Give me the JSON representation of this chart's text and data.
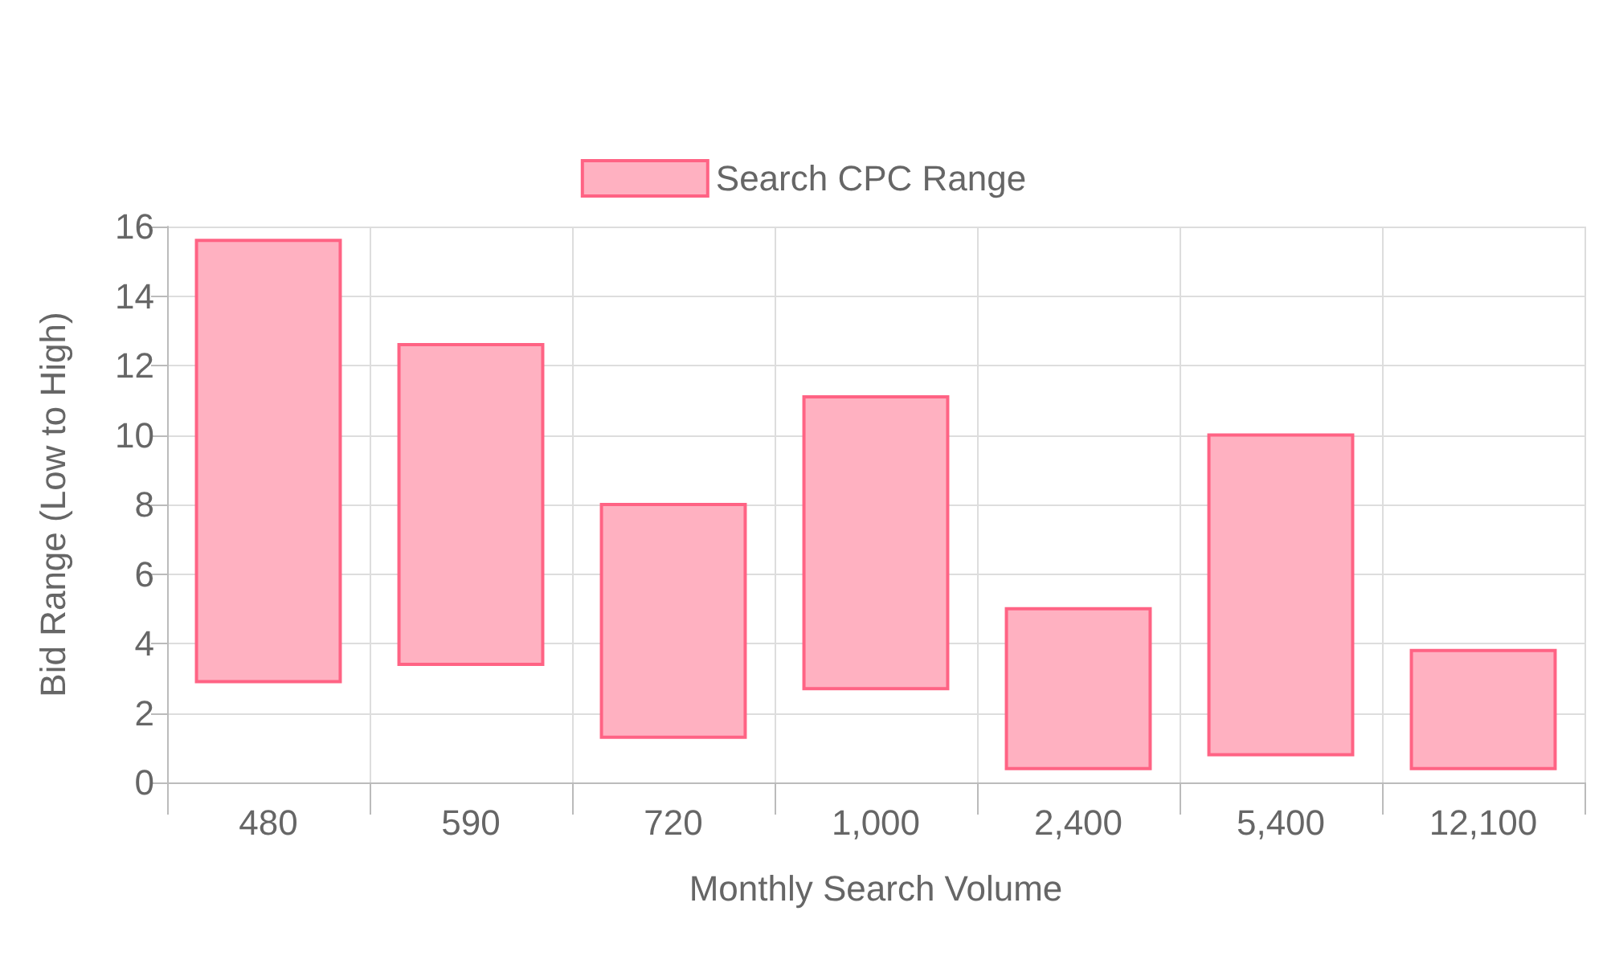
{
  "chart_data": {
    "type": "bar",
    "xlabel": "Monthly Search Volume",
    "ylabel": "Bid Range (Low to High)",
    "categories": [
      "480",
      "590",
      "720",
      "1,000",
      "2,400",
      "5,400",
      "12,100"
    ],
    "series": [
      {
        "name": "Search CPC Range",
        "color": "#ffb1c1",
        "values": [
          12.7,
          9.2,
          6.7,
          8.4,
          4.6,
          9.2,
          3.4
        ],
        "base": [
          2.9,
          3.4,
          1.3,
          2.7,
          0.4,
          0.8,
          0.4
        ]
      }
    ],
    "ylim": [
      0,
      16
    ],
    "yticks": [
      0,
      2,
      4,
      6,
      8,
      10,
      12,
      14,
      16
    ],
    "grid": true,
    "legend": "top"
  }
}
